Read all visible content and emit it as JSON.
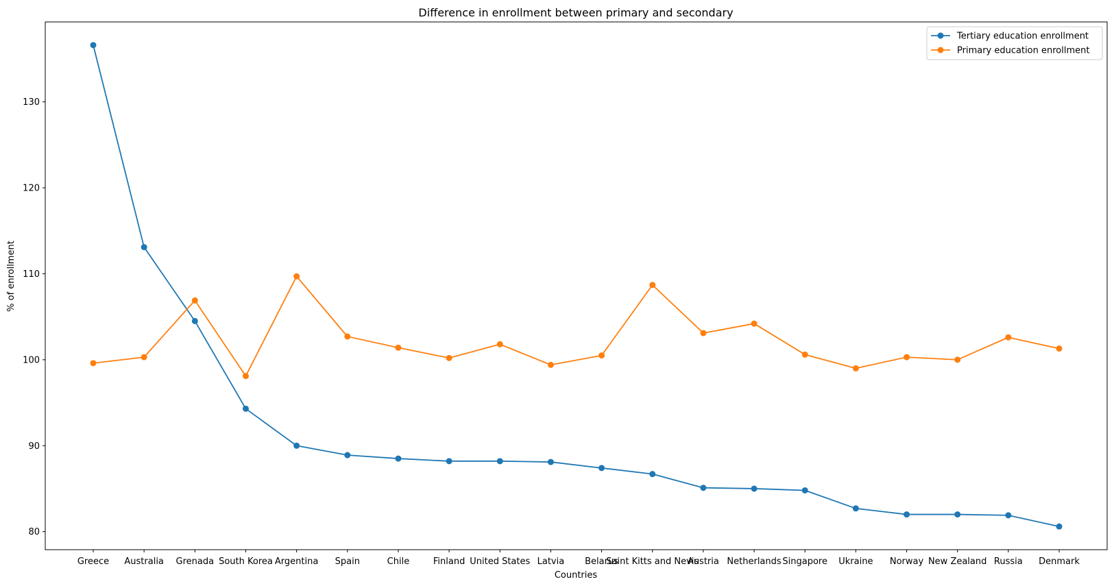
{
  "chart_data": {
    "type": "line",
    "title": "Difference in enrollment between primary and secondary",
    "xlabel": "Countries",
    "ylabel": "% of enrollment",
    "categories": [
      "Greece",
      "Australia",
      "Grenada",
      "South Korea",
      "Argentina",
      "Spain",
      "Chile",
      "Finland",
      "United States",
      "Latvia",
      "Belarus",
      "Saint Kitts and Nevis",
      "Austria",
      "Netherlands",
      "Singapore",
      "Ukraine",
      "Norway",
      "New Zealand",
      "Russia",
      "Denmark"
    ],
    "series": [
      {
        "name": "Tertiary education enrollment",
        "color": "#1f77b4",
        "values": [
          136.6,
          113.1,
          104.5,
          94.3,
          90.0,
          88.9,
          88.5,
          88.2,
          88.2,
          88.1,
          87.4,
          86.7,
          85.1,
          85.0,
          84.8,
          82.7,
          82.0,
          82.0,
          81.9,
          80.6
        ]
      },
      {
        "name": "Primary education enrollment",
        "color": "#ff7f0e",
        "values": [
          99.6,
          100.3,
          106.9,
          98.1,
          109.7,
          102.7,
          101.4,
          100.2,
          101.8,
          99.4,
          100.5,
          108.7,
          103.1,
          104.2,
          100.6,
          99.0,
          100.3,
          100.0,
          102.6,
          101.3
        ]
      }
    ],
    "ylim": [
      77.9,
      139.3
    ],
    "yticks": [
      80,
      90,
      100,
      110,
      120,
      130
    ],
    "grid": false,
    "legend": "upper-right"
  }
}
